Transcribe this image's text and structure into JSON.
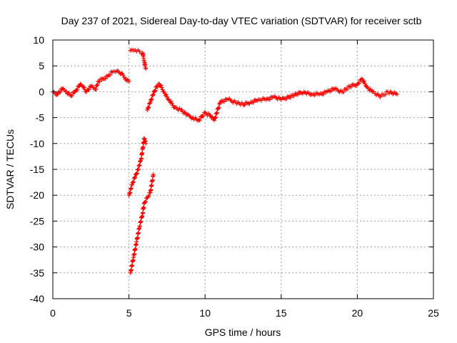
{
  "chart_data": {
    "type": "scatter",
    "title": "Day 237 of 2021, Sidereal Day-to-day VTEC variation (SDTVAR) for receiver sctb",
    "xlabel": "GPS time / hours",
    "ylabel": "SDTVAR / TECUs",
    "xlim": [
      0,
      25
    ],
    "ylim": [
      -40,
      10
    ],
    "grid": true,
    "xticks": [
      0,
      5,
      10,
      15,
      20,
      25
    ],
    "xtick_labels": [
      "0",
      "5",
      "10",
      "15",
      "20",
      "25"
    ],
    "yticks": [
      -40,
      -35,
      -30,
      -25,
      -20,
      -15,
      -10,
      -5,
      0,
      5,
      10
    ],
    "ytick_labels": [
      "-40",
      "-35",
      "-30",
      "-25",
      "-20",
      "-15",
      "-10",
      "-5",
      "0",
      "5",
      "10"
    ],
    "marker": "+",
    "color": "#ff0000",
    "series": [
      {
        "name": "main",
        "x": [
          0.0,
          0.3,
          0.6,
          0.9,
          1.2,
          1.5,
          1.8,
          2.0,
          2.2,
          2.5,
          2.8,
          3.0,
          3.3,
          3.6,
          3.9,
          4.2,
          4.5,
          4.8,
          5.0
        ],
        "y": [
          0.0,
          -0.5,
          0.5,
          0.0,
          -0.8,
          0.2,
          1.5,
          1.0,
          0.0,
          1.0,
          0.5,
          2.0,
          2.5,
          3.0,
          3.8,
          4.0,
          3.5,
          2.5,
          2.0
        ]
      },
      {
        "name": "high-branch",
        "x": [
          5.1,
          5.3,
          5.5,
          5.7,
          5.9,
          6.0,
          6.1
        ],
        "y": [
          8.0,
          8.0,
          7.8,
          7.8,
          7.5,
          6.0,
          4.5
        ]
      },
      {
        "name": "recovery",
        "x": [
          6.2,
          6.4,
          6.6,
          6.8,
          7.0,
          7.3,
          7.6,
          8.0,
          8.4,
          8.8,
          9.2,
          9.6,
          10.0,
          10.3,
          10.6,
          11.0,
          11.5,
          12.0,
          12.5,
          13.0,
          13.5,
          14.0,
          14.5,
          15.0,
          15.5,
          16.0,
          16.5,
          17.0,
          17.5,
          18.0,
          18.5,
          19.0,
          19.5,
          20.0,
          20.3,
          20.6,
          21.0,
          21.5,
          22.0,
          22.6
        ],
        "y": [
          -3.5,
          -2.0,
          -0.5,
          1.0,
          1.5,
          0.0,
          -1.5,
          -3.0,
          -3.5,
          -4.5,
          -5.0,
          -5.5,
          -4.0,
          -4.5,
          -5.5,
          -2.0,
          -1.5,
          -2.0,
          -2.5,
          -2.0,
          -1.5,
          -1.5,
          -1.0,
          -1.5,
          -1.0,
          -0.5,
          0.0,
          -0.5,
          -0.5,
          0.0,
          0.5,
          0.0,
          1.0,
          1.5,
          2.5,
          1.0,
          0.0,
          -1.0,
          0.0,
          -0.5
        ]
      },
      {
        "name": "low-branch-a",
        "x": [
          5.0,
          5.2,
          5.4,
          5.6,
          5.8,
          5.9,
          6.0,
          6.1
        ],
        "y": [
          -20.0,
          -18.0,
          -16.5,
          -15.0,
          -13.0,
          -11.0,
          -9.0,
          -10.0
        ]
      },
      {
        "name": "low-branch-b",
        "x": [
          5.1,
          5.3,
          5.5,
          5.7,
          5.9,
          6.0,
          6.2,
          6.4,
          6.6
        ],
        "y": [
          -35.0,
          -32.0,
          -29.0,
          -26.0,
          -23.5,
          -21.5,
          -20.5,
          -19.5,
          -16.0
        ]
      }
    ]
  }
}
